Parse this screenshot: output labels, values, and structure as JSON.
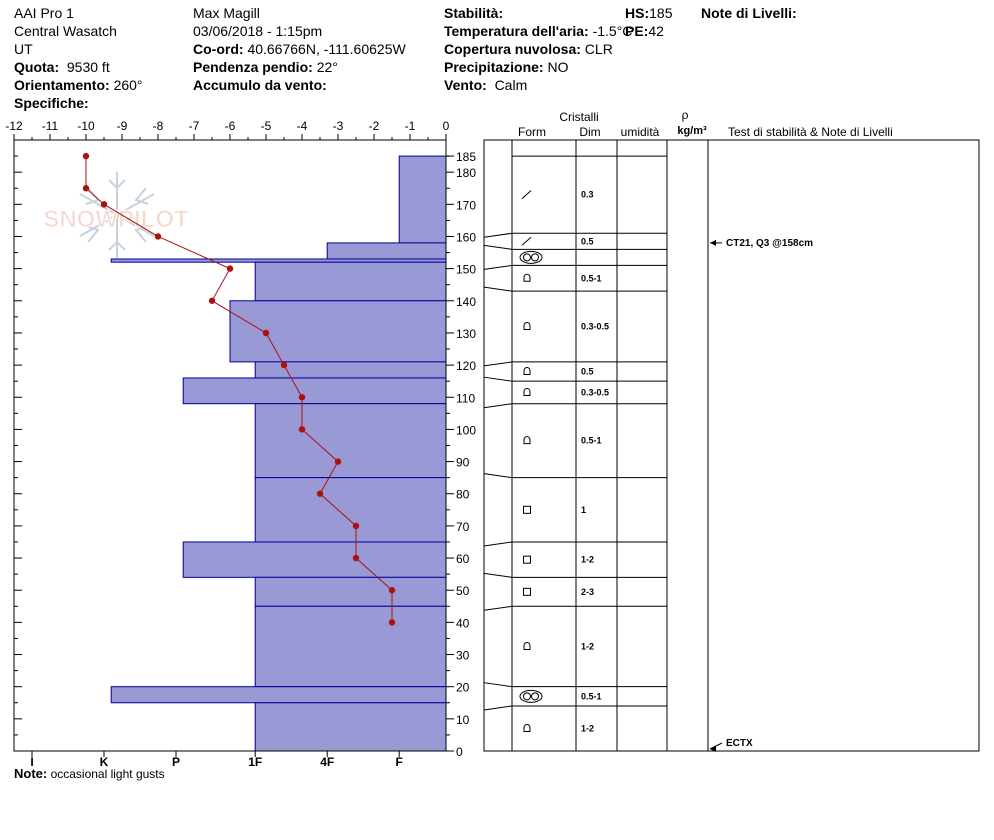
{
  "header": {
    "col1": [
      "AAI Pro 1",
      "Central Wasatch",
      "UT"
    ],
    "quota_label": "Quota:",
    "quota_value": "9530 ft",
    "orient_label": "Orientamento:",
    "orient_value": "260°",
    "spec_label": "Specifiche:",
    "observer": "Max Magill",
    "datetime": "03/06/2018 - 1:15pm",
    "coord_label": "Co-ord:",
    "coord_value": "40.66766N, -111.60625W",
    "slope_label": "Pendenza pendio:",
    "slope_value": "22°",
    "wind_load_label": "Accumulo da vento:",
    "stab_label": "Stabilità:",
    "air_label": "Temperatura dell'aria:",
    "air_value": "-1.5°C",
    "cloud_label": "Copertura nuvolosa:",
    "cloud_value": "CLR",
    "precip_label": "Precipitazione:",
    "precip_value": "NO",
    "wind_label": "Vento:",
    "wind_value": "Calm",
    "hs_label": "HS:",
    "hs_value": "185",
    "pe_label": "PE:",
    "pe_value": "42",
    "layer_notes_label": "Note di Livelli:"
  },
  "watermark": "SNOWPILOT",
  "columns": {
    "cristalli": "Cristalli",
    "form": "Form",
    "dim": "Dim",
    "umidita": "umidità",
    "rho": "ρ",
    "density_unit": "kg/m³",
    "tests": "Test di stabilità & Note di Livelli"
  },
  "footer": {
    "note_label": "Note:",
    "note_value": "occasional light gusts"
  },
  "colors": {
    "hardness_fill": "#9999d6",
    "hardness_stroke": "#000099",
    "temp_line": "#aa1111"
  },
  "chart_data": {
    "type": "snow-profile",
    "temperature_axis": {
      "ticks": [
        "-12",
        "-11",
        "-10",
        "-9",
        "-8",
        "-7",
        "-6",
        "-5",
        "-4",
        "-3",
        "-2",
        "-1",
        "0"
      ],
      "range": [
        -12,
        0
      ]
    },
    "height_axis": {
      "ticks": [
        185,
        180,
        170,
        160,
        150,
        140,
        130,
        120,
        110,
        100,
        90,
        80,
        70,
        60,
        50,
        40,
        30,
        20,
        10,
        0
      ],
      "range": [
        0,
        190
      ]
    },
    "hardness_axis": {
      "ticks": [
        "I",
        "K",
        "P",
        "1F",
        "4F",
        "F"
      ]
    },
    "hardness_layers": [
      {
        "top": 185,
        "bottom": 158,
        "temp_equiv": -1.3
      },
      {
        "top": 158,
        "bottom": 153,
        "temp_equiv": -3.3
      },
      {
        "top": 153,
        "bottom": 152,
        "temp_equiv": -9.3
      },
      {
        "top": 152,
        "bottom": 140,
        "temp_equiv": -5.3
      },
      {
        "top": 140,
        "bottom": 121,
        "temp_equiv": -6.0
      },
      {
        "top": 121,
        "bottom": 116,
        "temp_equiv": -5.3
      },
      {
        "top": 116,
        "bottom": 108,
        "temp_equiv": -7.3
      },
      {
        "top": 108,
        "bottom": 85,
        "temp_equiv": -5.3
      },
      {
        "top": 85,
        "bottom": 65,
        "temp_equiv": -5.3
      },
      {
        "top": 65,
        "bottom": 54,
        "temp_equiv": -7.3
      },
      {
        "top": 54,
        "bottom": 45,
        "temp_equiv": -5.3
      },
      {
        "top": 45,
        "bottom": 20,
        "temp_equiv": -5.3
      },
      {
        "top": 20,
        "bottom": 15,
        "temp_equiv": -9.3
      },
      {
        "top": 15,
        "bottom": 0,
        "temp_equiv": -5.3
      }
    ],
    "temperature_profile": [
      {
        "height": 185,
        "temp": -10.0
      },
      {
        "height": 175,
        "temp": -10.0
      },
      {
        "height": 170,
        "temp": -9.5
      },
      {
        "height": 160,
        "temp": -8.0
      },
      {
        "height": 150,
        "temp": -6.0
      },
      {
        "height": 140,
        "temp": -6.5
      },
      {
        "height": 130,
        "temp": -5.0
      },
      {
        "height": 120,
        "temp": -4.5
      },
      {
        "height": 110,
        "temp": -4.0
      },
      {
        "height": 100,
        "temp": -4.0
      },
      {
        "height": 90,
        "temp": -3.0
      },
      {
        "height": 80,
        "temp": -3.5
      },
      {
        "height": 70,
        "temp": -2.5
      },
      {
        "height": 60,
        "temp": -2.5
      },
      {
        "height": 50,
        "temp": -1.5
      },
      {
        "height": 40,
        "temp": -1.5
      }
    ],
    "crystal_layers": [
      {
        "top": 185,
        "bottom": 161,
        "form": "decomposing",
        "dim": "0.3"
      },
      {
        "top": 161,
        "bottom": 156,
        "form": "decomposing",
        "dim": "0.5"
      },
      {
        "top": 156,
        "bottom": 151,
        "form": "melt-freeze",
        "dim": ""
      },
      {
        "top": 151,
        "bottom": 143,
        "form": "faceted-rounded",
        "dim": "0.5-1"
      },
      {
        "top": 143,
        "bottom": 121,
        "form": "faceted-rounded",
        "dim": "0.3-0.5"
      },
      {
        "top": 121,
        "bottom": 115,
        "form": "faceted-rounded",
        "dim": "0.5"
      },
      {
        "top": 115,
        "bottom": 108,
        "form": "faceted-rounded",
        "dim": "0.3-0.5"
      },
      {
        "top": 108,
        "bottom": 85,
        "form": "faceted-rounded",
        "dim": "0.5-1"
      },
      {
        "top": 85,
        "bottom": 65,
        "form": "faceted",
        "dim": "1"
      },
      {
        "top": 65,
        "bottom": 54,
        "form": "faceted",
        "dim": "1-2"
      },
      {
        "top": 54,
        "bottom": 45,
        "form": "faceted",
        "dim": "2-3"
      },
      {
        "top": 45,
        "bottom": 20,
        "form": "faceted-rounded",
        "dim": "1-2"
      },
      {
        "top": 20,
        "bottom": 14,
        "form": "melt-freeze",
        "dim": "0.5-1"
      },
      {
        "top": 14,
        "bottom": 0,
        "form": "faceted-rounded",
        "dim": "1-2"
      }
    ],
    "stability_tests": [
      {
        "label": "CT21, Q3 @158cm",
        "height": 158
      },
      {
        "label": "ECTX",
        "height": 0
      }
    ]
  }
}
